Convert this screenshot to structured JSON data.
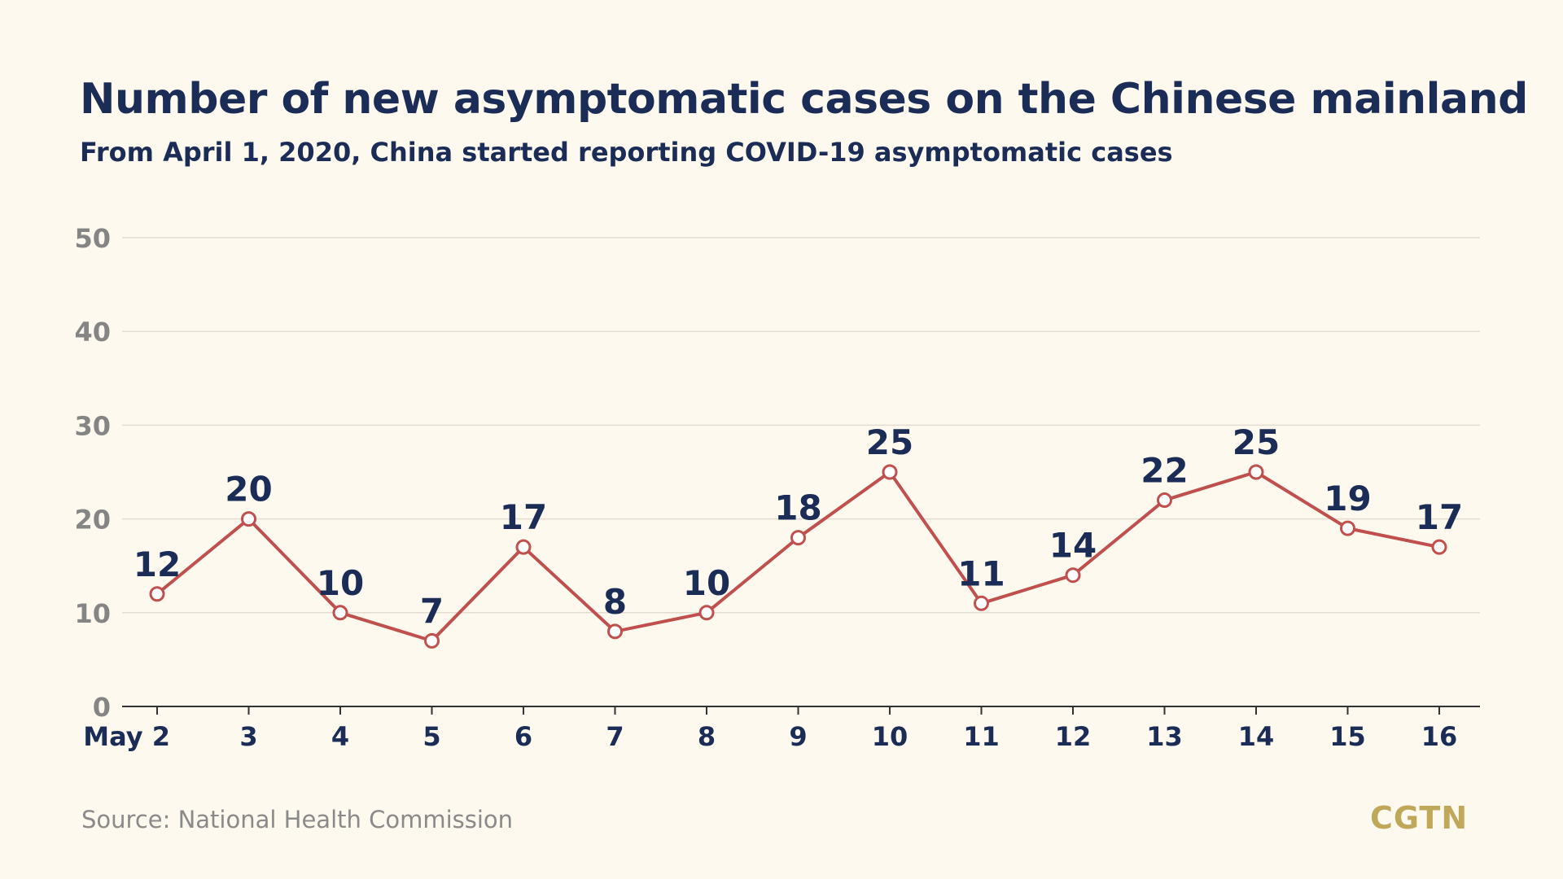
{
  "header": {
    "title": "Number of new asymptomatic cases on the Chinese mainland",
    "subtitle": "From April 1, 2020, China started reporting COVID-19 asymptomatic cases"
  },
  "footer": {
    "source": "Source: National Health Commission",
    "logo": "CGTN"
  },
  "colors": {
    "line": "#c0504d",
    "text": "#1b2d57",
    "tick": "#858585",
    "grid": "#e3ddd0",
    "background": "#fdf9ef",
    "logo": "#c0a85a"
  },
  "chart_data": {
    "type": "line",
    "title": "Number of new asymptomatic cases on the Chinese mainland",
    "subtitle": "From April 1, 2020, China started reporting COVID-19 asymptomatic cases",
    "categories": [
      "May 2",
      "3",
      "4",
      "5",
      "6",
      "7",
      "8",
      "9",
      "10",
      "11",
      "12",
      "13",
      "14",
      "15",
      "16"
    ],
    "values": [
      12,
      20,
      10,
      7,
      17,
      8,
      10,
      18,
      25,
      11,
      14,
      22,
      25,
      19,
      17
    ],
    "ylim": [
      0,
      50
    ],
    "yticks": [
      0,
      10,
      20,
      30,
      40,
      50
    ],
    "grid": true,
    "data_labels": true
  }
}
